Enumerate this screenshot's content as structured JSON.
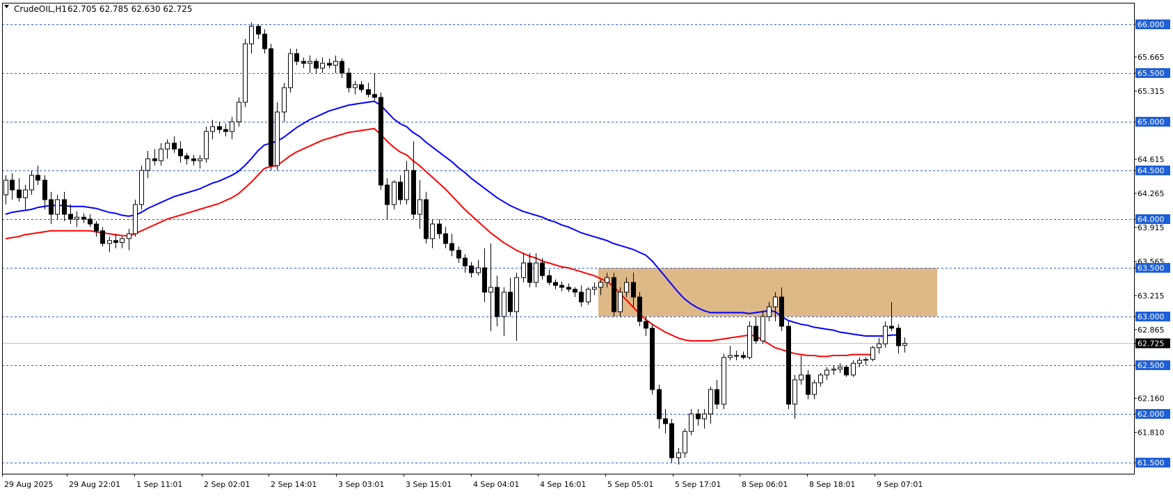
{
  "header": {
    "symbol_label": "CrudeOIL,H1",
    "ohlc_label": "62.705 62.785 62.630 62.725"
  },
  "colors": {
    "level_line": "#1f5fd6",
    "zone_fill": "#deb887",
    "ema_fast": "#0000ff",
    "ema_slow": "#ff0000",
    "candle_bull": "#ffffff",
    "candle_bear": "#000000",
    "price_line": "#c0c0c0"
  },
  "chart_data": {
    "type": "candlestick",
    "title": "",
    "xlabel": "",
    "ylabel": "",
    "ylim": [
      61.45,
      66.1
    ],
    "grid": false,
    "x_ticks": [
      "29 Aug 2025",
      "29 Aug 22:01",
      "1 Sep 11:01",
      "2 Sep 02:01",
      "2 Sep 14:01",
      "3 Sep 03:01",
      "3 Sep 15:01",
      "4 Sep 04:01",
      "4 Sep 16:01",
      "5 Sep 05:01",
      "5 Sep 17:01",
      "8 Sep 06:01",
      "8 Sep 18:01",
      "9 Sep 07:01"
    ],
    "y_ticks": [
      "66.000",
      "65.665",
      "65.500",
      "65.315",
      "65.000",
      "64.615",
      "64.500",
      "64.265",
      "64.000",
      "63.915",
      "63.565",
      "63.500",
      "63.215",
      "63.000",
      "62.865",
      "62.725",
      "62.500",
      "62.160",
      "62.000",
      "61.810",
      "61.500"
    ],
    "levels": [
      66.0,
      65.5,
      65.0,
      64.5,
      64.0,
      63.5,
      63.0,
      62.5,
      62.0,
      61.5
    ],
    "zone": {
      "low": 63.0,
      "high": 63.5,
      "start_tick": "5 Sep 05:01"
    },
    "current_price": 62.725,
    "candles": [
      [
        64.25,
        64.45,
        64.15,
        64.4
      ],
      [
        64.4,
        64.47,
        64.2,
        64.3
      ],
      [
        64.3,
        64.42,
        64.18,
        64.22
      ],
      [
        64.22,
        64.35,
        64.1,
        64.3
      ],
      [
        64.3,
        64.5,
        64.25,
        64.45
      ],
      [
        64.45,
        64.55,
        64.35,
        64.4
      ],
      [
        64.4,
        64.45,
        64.1,
        64.2
      ],
      [
        64.2,
        64.28,
        63.95,
        64.05
      ],
      [
        64.05,
        64.25,
        64.0,
        64.2
      ],
      [
        64.2,
        64.28,
        63.98,
        64.05
      ],
      [
        64.05,
        64.15,
        63.95,
        64.0
      ],
      [
        64.0,
        64.08,
        63.92,
        64.02
      ],
      [
        64.02,
        64.06,
        63.96,
        64.0
      ],
      [
        64.0,
        64.05,
        63.92,
        63.95
      ],
      [
        63.95,
        63.98,
        63.82,
        63.88
      ],
      [
        63.88,
        63.92,
        63.72,
        63.75
      ],
      [
        63.75,
        63.82,
        63.66,
        63.78
      ],
      [
        63.78,
        63.85,
        63.7,
        63.76
      ],
      [
        63.76,
        63.82,
        63.7,
        63.8
      ],
      [
        63.8,
        63.9,
        63.68,
        63.85
      ],
      [
        63.85,
        64.2,
        63.82,
        64.15
      ],
      [
        64.15,
        64.55,
        64.1,
        64.5
      ],
      [
        64.5,
        64.7,
        64.42,
        64.62
      ],
      [
        64.62,
        64.72,
        64.55,
        64.6
      ],
      [
        64.6,
        64.78,
        64.55,
        64.72
      ],
      [
        64.72,
        64.82,
        64.62,
        64.78
      ],
      [
        64.78,
        64.85,
        64.68,
        64.72
      ],
      [
        64.72,
        64.8,
        64.58,
        64.65
      ],
      [
        64.65,
        64.68,
        64.56,
        64.62
      ],
      [
        64.62,
        64.66,
        64.55,
        64.6
      ],
      [
        64.6,
        64.66,
        64.52,
        64.62
      ],
      [
        64.62,
        64.95,
        64.58,
        64.9
      ],
      [
        64.9,
        65.02,
        64.82,
        64.95
      ],
      [
        64.95,
        65.0,
        64.88,
        64.92
      ],
      [
        64.92,
        64.98,
        64.85,
        64.9
      ],
      [
        64.9,
        65.05,
        64.82,
        65.0
      ],
      [
        65.0,
        65.25,
        64.95,
        65.2
      ],
      [
        65.2,
        65.85,
        65.15,
        65.8
      ],
      [
        65.8,
        66.02,
        65.7,
        65.98
      ],
      [
        65.98,
        66.0,
        65.85,
        65.9
      ],
      [
        65.9,
        65.95,
        65.7,
        65.75
      ],
      [
        65.75,
        65.8,
        64.5,
        64.55
      ],
      [
        64.55,
        65.2,
        64.5,
        65.1
      ],
      [
        65.1,
        65.4,
        65.0,
        65.35
      ],
      [
        65.35,
        65.75,
        65.3,
        65.7
      ],
      [
        65.7,
        65.75,
        65.58,
        65.62
      ],
      [
        65.62,
        65.66,
        65.55,
        65.6
      ],
      [
        65.6,
        65.68,
        65.5,
        65.62
      ],
      [
        65.62,
        65.65,
        65.5,
        65.55
      ],
      [
        65.55,
        65.66,
        65.5,
        65.6
      ],
      [
        65.6,
        65.65,
        65.55,
        65.58
      ],
      [
        65.58,
        65.68,
        65.5,
        65.62
      ],
      [
        65.62,
        65.65,
        65.45,
        65.5
      ],
      [
        65.5,
        65.55,
        65.3,
        65.35
      ],
      [
        65.35,
        65.42,
        65.28,
        65.38
      ],
      [
        65.38,
        65.42,
        65.3,
        65.33
      ],
      [
        65.33,
        65.4,
        65.25,
        65.28
      ],
      [
        65.28,
        65.5,
        65.22,
        65.25
      ],
      [
        65.25,
        65.3,
        64.3,
        64.35
      ],
      [
        64.35,
        64.42,
        64.0,
        64.15
      ],
      [
        64.15,
        64.4,
        64.1,
        64.38
      ],
      [
        64.38,
        64.45,
        64.15,
        64.2
      ],
      [
        64.2,
        64.6,
        64.15,
        64.5
      ],
      [
        64.5,
        64.8,
        64.0,
        64.05
      ],
      [
        64.05,
        64.4,
        63.9,
        64.2
      ],
      [
        64.2,
        64.28,
        63.75,
        63.8
      ],
      [
        63.8,
        64.0,
        63.7,
        63.95
      ],
      [
        63.95,
        64.0,
        63.8,
        63.85
      ],
      [
        63.85,
        63.92,
        63.7,
        63.75
      ],
      [
        63.75,
        63.85,
        63.62,
        63.68
      ],
      [
        63.68,
        63.72,
        63.55,
        63.6
      ],
      [
        63.6,
        63.64,
        63.45,
        63.52
      ],
      [
        63.52,
        63.56,
        63.4,
        63.45
      ],
      [
        63.45,
        63.58,
        63.42,
        63.5
      ],
      [
        63.5,
        63.7,
        63.15,
        63.25
      ],
      [
        63.25,
        63.75,
        62.85,
        63.3
      ],
      [
        63.3,
        63.42,
        62.9,
        63.0
      ],
      [
        63.0,
        63.3,
        62.8,
        63.25
      ],
      [
        63.25,
        63.4,
        63.0,
        63.05
      ],
      [
        63.05,
        63.45,
        62.75,
        63.4
      ],
      [
        63.4,
        63.65,
        63.35,
        63.55
      ],
      [
        63.55,
        63.65,
        63.3,
        63.35
      ],
      [
        63.35,
        63.65,
        63.3,
        63.55
      ],
      [
        63.55,
        63.6,
        63.38,
        63.42
      ],
      [
        63.42,
        63.48,
        63.32,
        63.35
      ],
      [
        63.35,
        63.38,
        63.28,
        63.32
      ],
      [
        63.32,
        63.36,
        63.26,
        63.3
      ],
      [
        63.3,
        63.34,
        63.25,
        63.28
      ],
      [
        63.28,
        63.3,
        63.2,
        63.25
      ],
      [
        63.25,
        63.32,
        63.1,
        63.15
      ],
      [
        63.15,
        63.3,
        63.12,
        63.28
      ],
      [
        63.28,
        63.35,
        63.22,
        63.3
      ],
      [
        63.3,
        63.38,
        63.22,
        63.35
      ],
      [
        63.35,
        63.45,
        63.3,
        63.4
      ],
      [
        63.4,
        63.45,
        63.0,
        63.05
      ],
      [
        63.05,
        63.3,
        63.0,
        63.25
      ],
      [
        63.25,
        63.4,
        63.2,
        63.35
      ],
      [
        63.35,
        63.45,
        63.1,
        63.2
      ],
      [
        63.2,
        63.25,
        62.9,
        62.95
      ],
      [
        62.95,
        63.0,
        62.8,
        62.88
      ],
      [
        62.88,
        62.92,
        62.2,
        62.25
      ],
      [
        62.25,
        62.3,
        61.85,
        61.95
      ],
      [
        61.95,
        62.05,
        61.8,
        61.9
      ],
      [
        61.9,
        61.95,
        61.5,
        61.55
      ],
      [
        61.55,
        61.65,
        61.48,
        61.6
      ],
      [
        61.6,
        61.85,
        61.55,
        61.82
      ],
      [
        61.82,
        62.05,
        61.78,
        62.0
      ],
      [
        62.0,
        62.05,
        61.88,
        61.95
      ],
      [
        61.95,
        62.05,
        61.85,
        62.0
      ],
      [
        62.0,
        62.28,
        61.9,
        62.25
      ],
      [
        62.25,
        62.35,
        62.05,
        62.1
      ],
      [
        62.1,
        62.62,
        62.05,
        62.58
      ],
      [
        62.58,
        62.7,
        62.55,
        62.6
      ],
      [
        62.6,
        62.65,
        62.55,
        62.6
      ],
      [
        62.6,
        62.64,
        62.56,
        62.58
      ],
      [
        62.58,
        62.95,
        62.56,
        62.9
      ],
      [
        62.9,
        63.0,
        62.72,
        62.75
      ],
      [
        62.75,
        63.05,
        62.72,
        63.0
      ],
      [
        63.0,
        63.15,
        62.95,
        63.1
      ],
      [
        63.1,
        63.25,
        62.95,
        63.2
      ],
      [
        63.2,
        63.3,
        62.85,
        62.9
      ],
      [
        62.9,
        62.95,
        62.05,
        62.1
      ],
      [
        62.1,
        62.4,
        61.95,
        62.35
      ],
      [
        62.35,
        62.6,
        62.3,
        62.4
      ],
      [
        62.4,
        62.45,
        62.15,
        62.2
      ],
      [
        62.2,
        62.35,
        62.15,
        62.32
      ],
      [
        62.32,
        62.42,
        62.28,
        62.4
      ],
      [
        62.4,
        62.48,
        62.35,
        62.45
      ],
      [
        62.45,
        62.5,
        62.4,
        62.46
      ],
      [
        62.46,
        62.52,
        62.42,
        62.48
      ],
      [
        62.48,
        62.5,
        62.38,
        62.4
      ],
      [
        62.4,
        62.55,
        62.38,
        62.52
      ],
      [
        62.52,
        62.58,
        62.48,
        62.55
      ],
      [
        62.55,
        62.58,
        62.5,
        62.56
      ],
      [
        62.56,
        62.7,
        62.54,
        62.68
      ],
      [
        62.68,
        62.78,
        62.62,
        62.72
      ],
      [
        62.72,
        62.95,
        62.68,
        62.9
      ],
      [
        62.9,
        63.15,
        62.85,
        62.88
      ],
      [
        62.88,
        62.92,
        62.62,
        62.7
      ],
      [
        62.705,
        62.785,
        62.63,
        62.725
      ]
    ],
    "series": [
      {
        "color": "#0000ff",
        "values": [
          64.05,
          64.07,
          64.08,
          64.09,
          64.1,
          64.12,
          64.13,
          64.14,
          64.14,
          64.14,
          64.13,
          64.13,
          64.13,
          64.12,
          64.11,
          64.09,
          64.07,
          64.06,
          64.04,
          64.03,
          64.04,
          64.07,
          64.11,
          64.14,
          64.17,
          64.2,
          64.23,
          64.25,
          64.27,
          64.29,
          64.31,
          64.34,
          64.37,
          64.39,
          64.42,
          64.45,
          64.49,
          64.55,
          64.62,
          64.7,
          64.76,
          64.78,
          64.8,
          64.84,
          64.89,
          64.94,
          64.98,
          65.02,
          65.05,
          65.08,
          65.11,
          65.13,
          65.15,
          65.17,
          65.18,
          65.19,
          65.2,
          65.21,
          65.17,
          65.1,
          65.03,
          64.98,
          64.95,
          64.89,
          64.85,
          64.79,
          64.74,
          64.69,
          64.64,
          64.59,
          64.53,
          64.48,
          64.42,
          64.37,
          64.32,
          64.27,
          64.22,
          64.18,
          64.14,
          64.11,
          64.08,
          64.06,
          64.04,
          64.02,
          63.99,
          63.97,
          63.94,
          63.92,
          63.89,
          63.86,
          63.84,
          63.82,
          63.8,
          63.78,
          63.75,
          63.73,
          63.71,
          63.69,
          63.66,
          63.63,
          63.57,
          63.49,
          63.41,
          63.33,
          63.25,
          63.18,
          63.13,
          63.09,
          63.06,
          63.04,
          63.04,
          63.04,
          63.04,
          63.04,
          63.04,
          63.03,
          63.04,
          63.05,
          63.06,
          63.05,
          63.0,
          62.96,
          62.94,
          62.92,
          62.91,
          62.89,
          62.88,
          62.87,
          62.86,
          62.84,
          62.83,
          62.82,
          62.81,
          62.8,
          62.8,
          62.8,
          62.8,
          62.81,
          62.81
        ]
      },
      {
        "color": "#ff0000",
        "values": [
          63.8,
          63.81,
          63.82,
          63.84,
          63.85,
          63.86,
          63.87,
          63.88,
          63.88,
          63.88,
          63.88,
          63.88,
          63.88,
          63.88,
          63.87,
          63.86,
          63.85,
          63.84,
          63.83,
          63.83,
          63.85,
          63.88,
          63.91,
          63.94,
          63.97,
          64.0,
          64.02,
          64.04,
          64.06,
          64.08,
          64.1,
          64.12,
          64.14,
          64.16,
          64.19,
          64.22,
          64.26,
          64.32,
          64.38,
          64.45,
          64.52,
          64.54,
          64.55,
          64.6,
          64.65,
          64.69,
          64.72,
          64.75,
          64.78,
          64.81,
          64.83,
          64.85,
          64.87,
          64.89,
          64.9,
          64.91,
          64.92,
          64.93,
          64.87,
          64.8,
          64.74,
          64.69,
          64.66,
          64.6,
          64.55,
          64.49,
          64.43,
          64.37,
          64.31,
          64.24,
          64.17,
          64.1,
          64.04,
          63.98,
          63.92,
          63.86,
          63.81,
          63.76,
          63.72,
          63.68,
          63.65,
          63.62,
          63.6,
          63.57,
          63.55,
          63.53,
          63.51,
          63.5,
          63.48,
          63.46,
          63.44,
          63.42,
          63.39,
          63.36,
          63.31,
          63.24,
          63.17,
          63.1,
          63.03,
          62.97,
          62.92,
          62.88,
          62.84,
          62.81,
          62.78,
          62.76,
          62.75,
          62.75,
          62.75,
          62.75,
          62.76,
          62.77,
          62.78,
          62.79,
          62.8,
          62.81,
          62.8,
          62.76,
          62.72,
          62.68,
          62.66,
          62.64,
          62.62,
          62.61,
          62.6,
          62.6,
          62.59,
          62.59,
          62.6,
          62.6,
          62.6,
          62.61,
          62.61,
          62.61,
          62.61
        ]
      }
    ]
  }
}
